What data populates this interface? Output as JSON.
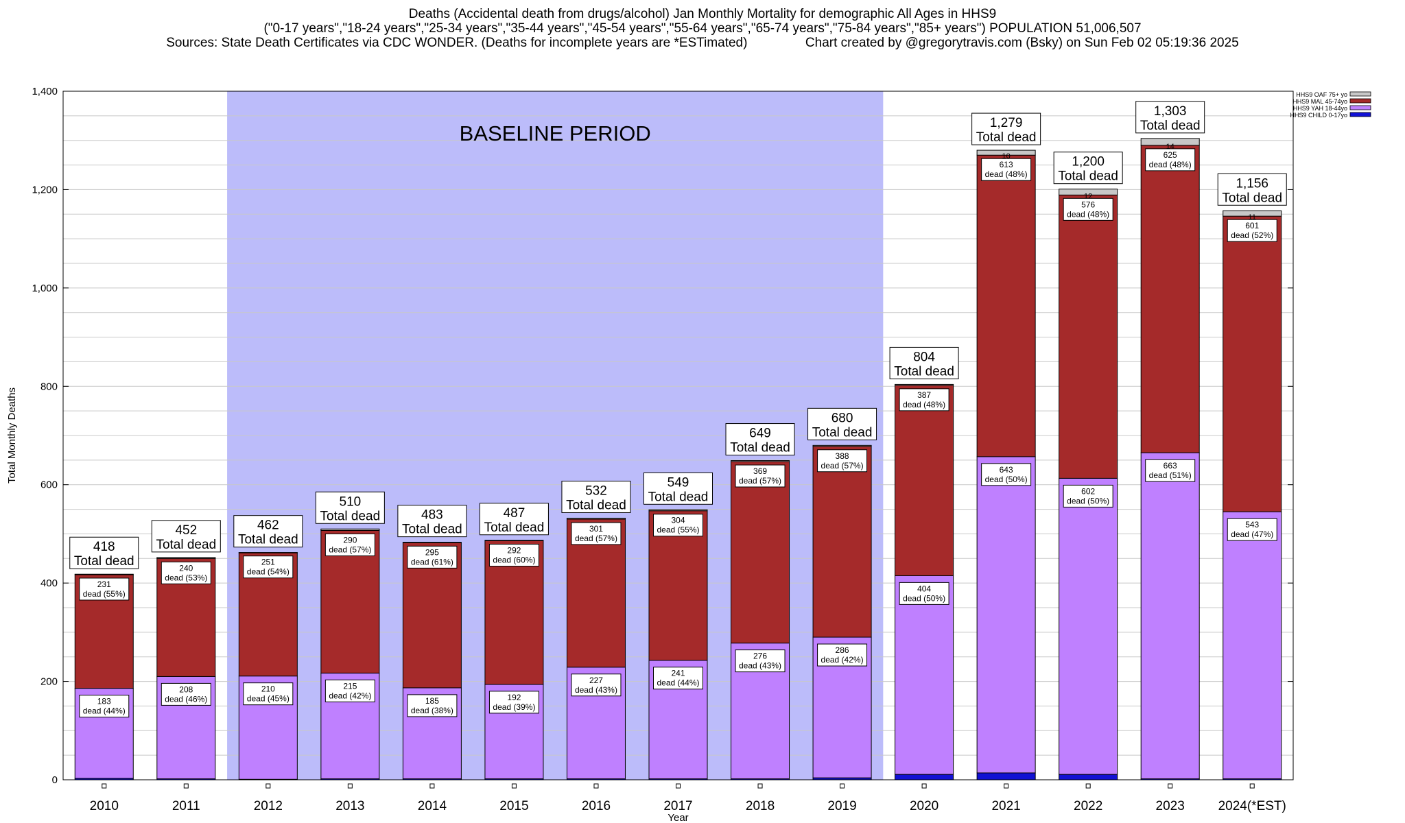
{
  "titles": {
    "line1": "Deaths (Accidental death from drugs/alcohol) Jan Monthly Mortality for demographic All Ages in HHS9",
    "line2": "(\"0-17 years\",\"18-24 years\",\"25-34 years\",\"35-44 years\",\"45-54 years\",\"55-64 years\",\"65-74 years\",\"75-84 years\",\"85+ years\") POPULATION 51,006,507",
    "line3": "Sources: State Death Certificates via CDC WONDER. (Deaths for incomplete years are *ESTimated)                Chart created by @gregorytravis.com (Bsky) on Sun Feb 02 05:19:36 2025"
  },
  "chart_data": {
    "type": "bar",
    "stacked": true,
    "xlabel": "Year",
    "ylabel": "Total Monthly Deaths",
    "ylim": [
      0,
      1400
    ],
    "yticks": [
      0,
      200,
      400,
      600,
      800,
      1000,
      1200,
      1400
    ],
    "ytick_labels": [
      "0",
      "200",
      "400",
      "600",
      "800",
      "1,000",
      "1,200",
      "1,400"
    ],
    "grid": true,
    "legend_position": "top-right",
    "categories": [
      "2010",
      "2011",
      "2012",
      "2013",
      "2014",
      "2015",
      "2016",
      "2017",
      "2018",
      "2019",
      "2020",
      "2021",
      "2022",
      "2023",
      "2024(*EST)"
    ],
    "baseline_region": {
      "label": "BASELINE PERIOD",
      "from": "2012",
      "to": "2019",
      "color": "#bcbcfa"
    },
    "series": [
      {
        "name": "HHS9 CHILD 0-17yo",
        "color": "#1111d4",
        "values": [
          3,
          2,
          1,
          2,
          2,
          2,
          2,
          2,
          2,
          4,
          11,
          14,
          11,
          2,
          2
        ]
      },
      {
        "name": "HHS9 YAH 18-44yo",
        "color": "#bf80ff",
        "values": [
          183,
          208,
          210,
          215,
          185,
          192,
          227,
          241,
          276,
          286,
          404,
          643,
          602,
          663,
          543
        ]
      },
      {
        "name": "HHS9 MAL 45-74yo",
        "color": "#a52a2a",
        "values": [
          231,
          240,
          251,
          290,
          295,
          292,
          301,
          304,
          369,
          388,
          387,
          613,
          576,
          625,
          601
        ]
      },
      {
        "name": "HHS9 OAF 75+ yo",
        "color": "#c8c8c8",
        "values": [
          1,
          2,
          0,
          3,
          1,
          1,
          2,
          2,
          2,
          2,
          2,
          10,
          12,
          14,
          11
        ]
      }
    ],
    "totals": [
      "418",
      "452",
      "462",
      "510",
      "483",
      "487",
      "532",
      "549",
      "649",
      "680",
      "804",
      "1,279",
      "1,200",
      "1,303",
      "1,156"
    ],
    "total_suffix": "Total dead",
    "yah_labels": [
      "183",
      "208",
      "210",
      "215",
      "185",
      "192",
      "227",
      "241",
      "276",
      "286",
      "404",
      "643",
      "602",
      "663",
      "543"
    ],
    "yah_pct": [
      "dead (44%)",
      "dead (46%)",
      "dead (45%)",
      "dead (42%)",
      "dead (38%)",
      "dead (39%)",
      "dead (43%)",
      "dead (44%)",
      "dead (43%)",
      "dead (42%)",
      "dead (50%)",
      "dead (50%)",
      "dead (50%)",
      "dead (51%)",
      "dead (47%)"
    ],
    "mal_labels": [
      "231",
      "240",
      "251",
      "290",
      "295",
      "292",
      "301",
      "304",
      "369",
      "388",
      "387",
      "613",
      "576",
      "625",
      "601"
    ],
    "mal_pct": [
      "dead (55%)",
      "dead (53%)",
      "dead (54%)",
      "dead (57%)",
      "dead (61%)",
      "dead (60%)",
      "dead (57%)",
      "dead (55%)",
      "dead (57%)",
      "dead (57%)",
      "dead (48%)",
      "dead (48%)",
      "dead (48%)",
      "dead (48%)",
      "dead (52%)"
    ],
    "oaf_labels": [
      "",
      "",
      "",
      "",
      "",
      "",
      "",
      "",
      "",
      "",
      "",
      "10",
      "12",
      "14",
      "11"
    ]
  }
}
